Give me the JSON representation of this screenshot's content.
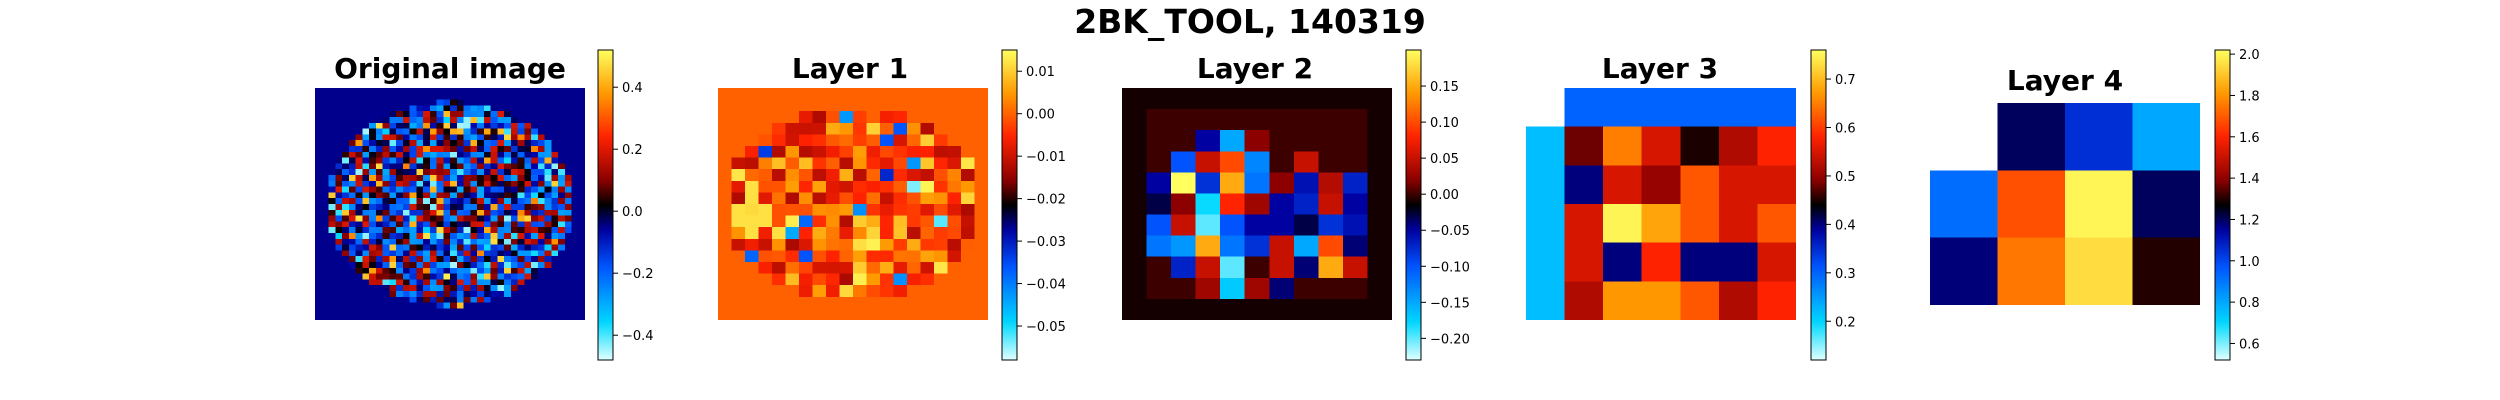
{
  "figure": {
    "title": "2BK_TOOL, 140319"
  },
  "colormap": {
    "name": "flag-like diverging (cyan-blue-black-red-yellow)",
    "stops": [
      [
        0.0,
        "#e0ffff"
      ],
      [
        0.12,
        "#00d8ff"
      ],
      [
        0.3,
        "#0055ff"
      ],
      [
        0.42,
        "#0000a0"
      ],
      [
        0.5,
        "#000000"
      ],
      [
        0.58,
        "#8b0000"
      ],
      [
        0.72,
        "#ff2200"
      ],
      [
        0.86,
        "#ff9900"
      ],
      [
        1.0,
        "#ffff60"
      ]
    ]
  },
  "chart_data": [
    {
      "type": "heatmap",
      "title": "Original image",
      "grid_note": "approx. 40x40 circular region, random noise values",
      "rows": [],
      "clim": [
        -0.48,
        0.52
      ],
      "background_value": -0.05,
      "colorbar_ticks": [
        0.4,
        0.2,
        0.0,
        -0.2,
        -0.4
      ],
      "colorbar_labels": [
        "0.4",
        "0.2",
        "0.0",
        "−0.2",
        "−0.4"
      ]
    },
    {
      "type": "heatmap",
      "title": "Layer 1",
      "grid_note": "approx. 20x20 circular region",
      "rows": [],
      "clim": [
        -0.058,
        0.015
      ],
      "background_value": 0.0,
      "colorbar_ticks": [
        0.01,
        0.0,
        -0.01,
        -0.02,
        -0.03,
        -0.04,
        -0.05
      ],
      "colorbar_labels": [
        "0.01",
        "0.00",
        "−0.01",
        "−0.02",
        "−0.03",
        "−0.04",
        "−0.05"
      ]
    },
    {
      "type": "heatmap",
      "title": "Layer 2",
      "grid_note": "approx. 10x10 region",
      "rows": [
        [
          -0.01,
          -0.01,
          -0.01,
          -0.01,
          -0.01,
          -0.01,
          -0.01,
          -0.01,
          -0.01,
          -0.01,
          -0.01
        ],
        [
          -0.01,
          0.0,
          0.0,
          0.0,
          0.0,
          0.0,
          0.0,
          0.0,
          0.0,
          0.0,
          -0.01
        ],
        [
          -0.01,
          0.0,
          0.0,
          -0.05,
          -0.15,
          0.02,
          0.0,
          0.0,
          0.0,
          0.0,
          -0.01
        ],
        [
          -0.01,
          0.0,
          -0.1,
          0.05,
          0.1,
          -0.13,
          0.0,
          0.05,
          0.0,
          0.0,
          -0.01
        ],
        [
          -0.01,
          -0.05,
          0.2,
          -0.08,
          0.15,
          -0.12,
          0.02,
          -0.06,
          0.04,
          -0.07,
          -0.01
        ],
        [
          -0.01,
          -0.03,
          0.02,
          -0.18,
          0.08,
          0.03,
          -0.05,
          -0.07,
          0.05,
          -0.05,
          -0.01
        ],
        [
          -0.01,
          -0.1,
          0.05,
          -0.2,
          -0.1,
          -0.05,
          -0.05,
          -0.03,
          -0.08,
          -0.06,
          -0.01
        ],
        [
          -0.01,
          -0.12,
          -0.14,
          0.15,
          -0.12,
          -0.08,
          0.05,
          -0.15,
          0.1,
          -0.04,
          -0.01
        ],
        [
          -0.01,
          0.0,
          -0.07,
          0.05,
          -0.2,
          0.0,
          0.05,
          -0.04,
          0.15,
          0.05,
          -0.01
        ],
        [
          -0.01,
          0.0,
          0.0,
          0.03,
          -0.17,
          0.03,
          -0.04,
          0.0,
          0.0,
          0.0,
          -0.01
        ],
        [
          -0.01,
          -0.01,
          -0.01,
          -0.01,
          -0.01,
          -0.01,
          -0.01,
          -0.01,
          -0.01,
          -0.01,
          -0.01
        ]
      ],
      "clim": [
        -0.23,
        0.2
      ],
      "colorbar_ticks": [
        0.15,
        0.1,
        0.05,
        0.0,
        -0.05,
        -0.1,
        -0.15,
        -0.2
      ],
      "colorbar_labels": [
        "0.15",
        "0.10",
        "0.05",
        "0.00",
        "−0.05",
        "−0.10",
        "−0.15",
        "−0.20"
      ]
    },
    {
      "type": "heatmap",
      "title": "Layer 3",
      "rows": [
        [
          null,
          0.3,
          0.3,
          0.3,
          0.3,
          0.3,
          0.3
        ],
        [
          0.22,
          0.48,
          0.65,
          0.55,
          0.45,
          0.52,
          0.58
        ],
        [
          0.22,
          0.4,
          0.55,
          0.5,
          0.62,
          0.55,
          0.55
        ],
        [
          0.22,
          0.55,
          0.75,
          0.68,
          0.62,
          0.55,
          0.62
        ],
        [
          0.22,
          0.55,
          0.4,
          0.58,
          0.4,
          0.4,
          0.55
        ],
        [
          0.22,
          0.52,
          0.67,
          0.67,
          0.62,
          0.52,
          0.58
        ]
      ],
      "clim": [
        0.12,
        0.76
      ],
      "colorbar_ticks": [
        0.7,
        0.6,
        0.5,
        0.4,
        0.3,
        0.2
      ],
      "colorbar_labels": [
        "0.7",
        "0.6",
        "0.5",
        "0.4",
        "0.3",
        "0.2"
      ]
    },
    {
      "type": "heatmap",
      "title": "Layer 4",
      "rows": [
        [
          null,
          1.2,
          1.05,
          0.8
        ],
        [
          0.92,
          1.68,
          2.0,
          1.2
        ],
        [
          1.18,
          1.75,
          1.95,
          1.3
        ]
      ],
      "clim": [
        0.52,
        2.02
      ],
      "colorbar_ticks": [
        2.0,
        1.8,
        1.6,
        1.4,
        1.2,
        1.0,
        0.8,
        0.6
      ],
      "colorbar_labels": [
        "2.0",
        "1.8",
        "1.6",
        "1.4",
        "1.2",
        "1.0",
        "0.8",
        "0.6"
      ]
    }
  ]
}
